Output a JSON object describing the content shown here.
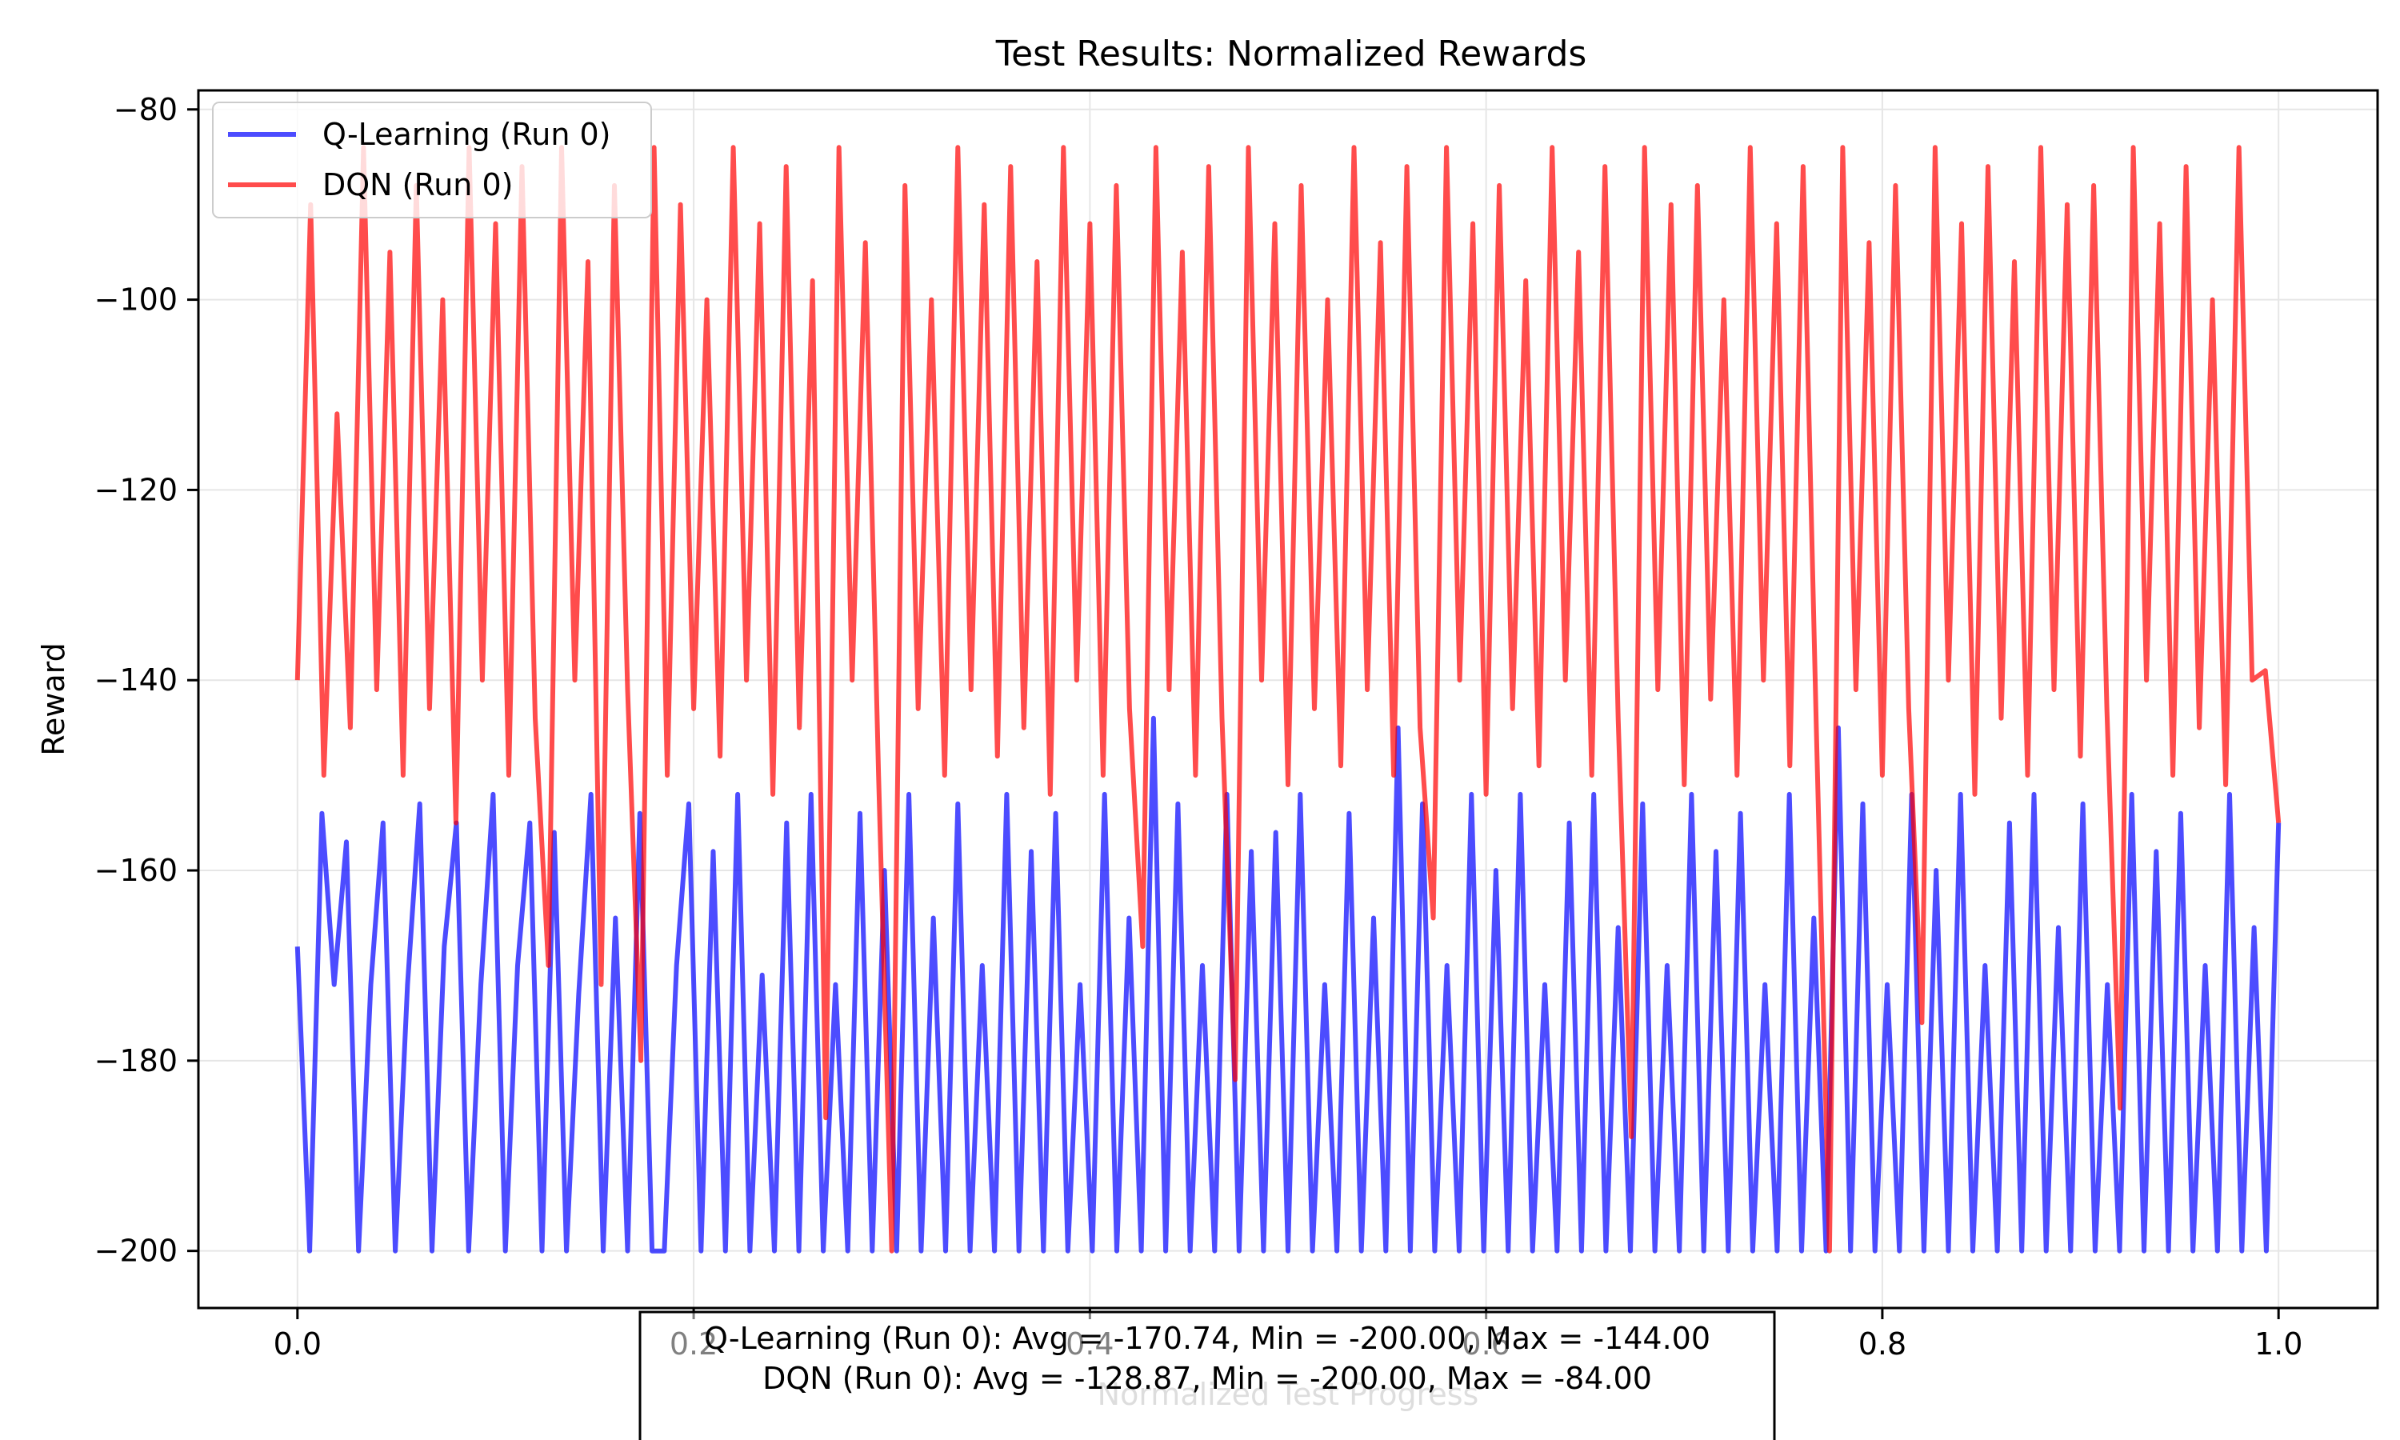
{
  "chart_data": {
    "type": "line",
    "title": "Test Results: Normalized Rewards",
    "xlabel": "Normalized Test Progress",
    "ylabel": "Reward",
    "xlim": [
      -0.05,
      1.05
    ],
    "ylim": [
      -206,
      -78
    ],
    "xticks": [
      0.0,
      0.2,
      0.4,
      0.6,
      0.8,
      1.0
    ],
    "xtick_labels": [
      "0.0",
      "0.2",
      "0.4",
      "0.6",
      "0.8",
      "1.0"
    ],
    "yticks": [
      -80,
      -100,
      -120,
      -140,
      -160,
      -180,
      -200
    ],
    "ytick_labels": [
      "−80",
      "−100",
      "−120",
      "−140",
      "−160",
      "−180",
      "−200"
    ],
    "grid": true,
    "legend_position": "top-left",
    "series": [
      {
        "name": "Q-Learning (Run 0)",
        "color": "#0000ff",
        "opacity": 0.7,
        "stats": {
          "avg": -170.74,
          "min": -200.0,
          "max": -144.0
        },
        "x_step": 0.001,
        "start_value": -168,
        "end_value": -155,
        "values": [
          -168,
          -200,
          -154,
          -172,
          -157,
          -200,
          -172,
          -155,
          -200,
          -172,
          -153,
          -200,
          -168,
          -155,
          -200,
          -172,
          -152,
          -200,
          -170,
          -155,
          -200,
          -156,
          -200,
          -173,
          -152,
          -200,
          -165,
          -200,
          -154,
          -200,
          -200,
          -170,
          -153,
          -200,
          -158,
          -200,
          -152,
          -200,
          -171,
          -200,
          -155,
          -200,
          -152,
          -200,
          -172,
          -200,
          -154,
          -200,
          -160,
          -200,
          -152,
          -200,
          -165,
          -200,
          -153,
          -200,
          -170,
          -200,
          -152,
          -200,
          -158,
          -200,
          -154,
          -200,
          -172,
          -200,
          -152,
          -200,
          -165,
          -200,
          -144,
          -200,
          -153,
          -200,
          -170,
          -200,
          -152,
          -200,
          -158,
          -200,
          -156,
          -200,
          -152,
          -200,
          -172,
          -200,
          -154,
          -200,
          -165,
          -200,
          -145,
          -200,
          -153,
          -200,
          -170,
          -200,
          -152,
          -200,
          -160,
          -200,
          -152,
          -200,
          -172,
          -200,
          -155,
          -200,
          -152,
          -200,
          -166,
          -200,
          -153,
          -200,
          -170,
          -200,
          -152,
          -200,
          -158,
          -200,
          -154,
          -200,
          -172,
          -200,
          -152,
          -200,
          -165,
          -200,
          -145,
          -200,
          -153,
          -200,
          -172,
          -200,
          -152,
          -200,
          -160,
          -200,
          -152,
          -200,
          -170,
          -200,
          -155,
          -200,
          -152,
          -200,
          -166,
          -200,
          -153,
          -200,
          -172,
          -200,
          -152,
          -200,
          -158,
          -200,
          -154,
          -200,
          -170,
          -200,
          -152,
          -200,
          -166,
          -200,
          -155
        ]
      },
      {
        "name": "DQN (Run 0)",
        "color": "#ff0000",
        "opacity": 0.7,
        "stats": {
          "avg": -128.87,
          "min": -200.0,
          "max": -84.0
        },
        "x_step": 0.001,
        "start_value": -140,
        "end_value": -155,
        "values": [
          -140,
          -90,
          -150,
          -112,
          -145,
          -84,
          -141,
          -95,
          -150,
          -88,
          -143,
          -100,
          -155,
          -84,
          -140,
          -92,
          -150,
          -86,
          -144,
          -170,
          -84,
          -140,
          -96,
          -172,
          -88,
          -141,
          -180,
          -84,
          -150,
          -90,
          -143,
          -100,
          -148,
          -84,
          -140,
          -92,
          -152,
          -86,
          -145,
          -98,
          -186,
          -84,
          -140,
          -94,
          -150,
          -200,
          -88,
          -143,
          -100,
          -150,
          -84,
          -141,
          -90,
          -148,
          -86,
          -145,
          -96,
          -152,
          -84,
          -140,
          -92,
          -150,
          -88,
          -143,
          -168,
          -84,
          -141,
          -95,
          -150,
          -86,
          -144,
          -182,
          -84,
          -140,
          -92,
          -151,
          -88,
          -143,
          -100,
          -149,
          -84,
          -141,
          -94,
          -150,
          -86,
          -145,
          -165,
          -84,
          -140,
          -92,
          -152,
          -88,
          -143,
          -98,
          -149,
          -84,
          -140,
          -95,
          -150,
          -86,
          -144,
          -188,
          -84,
          -141,
          -90,
          -151,
          -88,
          -142,
          -100,
          -150,
          -84,
          -140,
          -92,
          -149,
          -86,
          -145,
          -200,
          -84,
          -141,
          -94,
          -150,
          -88,
          -143,
          -176,
          -84,
          -140,
          -92,
          -152,
          -86,
          -144,
          -96,
          -150,
          -84,
          -141,
          -90,
          -148,
          -88,
          -143,
          -185,
          -84,
          -140,
          -92,
          -150,
          -86,
          -145,
          -100,
          -151,
          -84,
          -140,
          -139,
          -155
        ]
      }
    ]
  },
  "stats_box": {
    "line1": "Q-Learning (Run 0): Avg = -170.74, Min = -200.00, Max = -144.00",
    "line2": "DQN (Run 0): Avg = -128.87, Min = -200.00, Max = -84.00"
  }
}
